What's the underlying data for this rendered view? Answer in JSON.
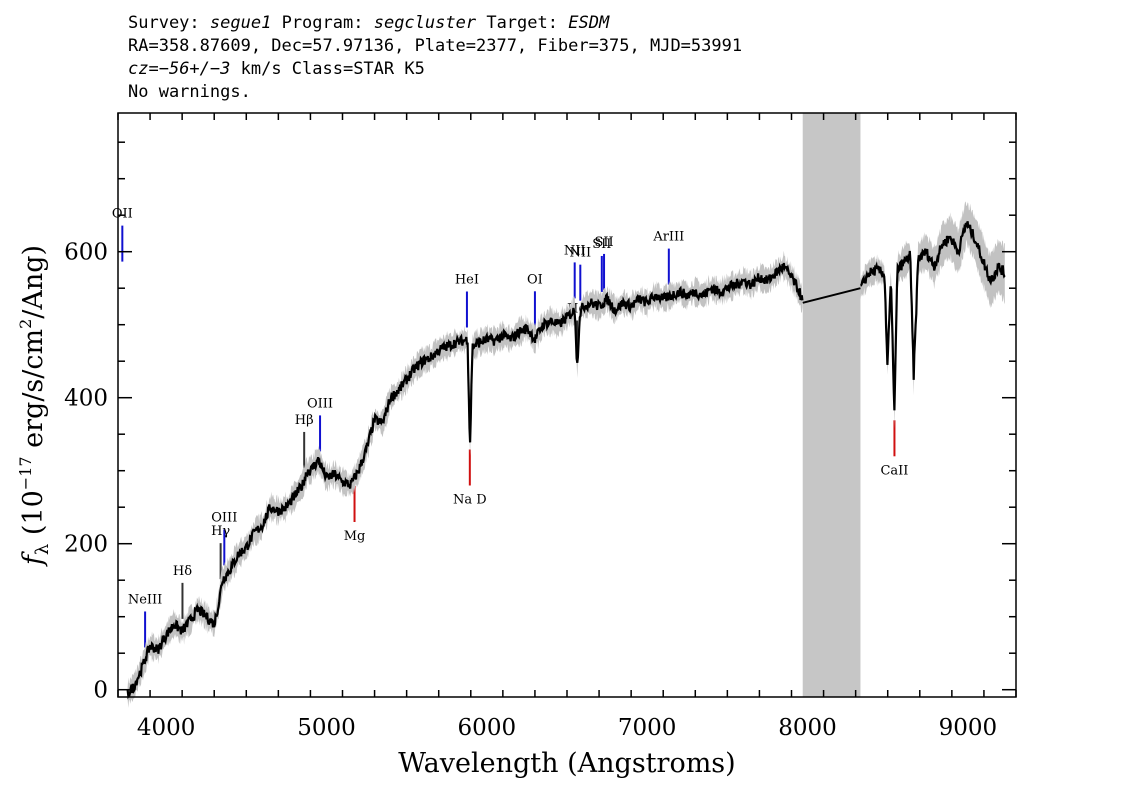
{
  "header": {
    "survey_label": "Survey:",
    "survey_value": "segue1",
    "program_label": "Program:",
    "program_value": "segcluster",
    "target_label": "Target:",
    "target_value": "ESDM",
    "line2": "RA=358.87609, Dec=57.97136, Plate=2377, Fiber=375, MJD=53991",
    "cz_label": "cz=",
    "cz_value": "−56+/−3",
    "cz_units": " km/s Class=STAR K5",
    "line4": "No warnings."
  },
  "chart_data": {
    "type": "line",
    "title": "Survey: segue1 Program: segcluster Target: ESDM",
    "xlabel": "Wavelength (Angstroms)",
    "ylabel_prefix": "f",
    "ylabel_subscript": "λ",
    "ylabel_main": " (10",
    "ylabel_exp": "−17",
    "ylabel_mid": " erg/s/cm",
    "ylabel_sq": "2",
    "ylabel_end": "/Ang)",
    "xlim": [
      3700,
      9300
    ],
    "ylim": [
      -10,
      790
    ],
    "x_ticks": [
      4000,
      5000,
      6000,
      7000,
      8000,
      9000
    ],
    "x_tick_labels": [
      "4000",
      "5000",
      "6000",
      "7000",
      "8000",
      "9000"
    ],
    "y_ticks": [
      0,
      200,
      400,
      600
    ],
    "y_tick_labels": [
      "0",
      "200",
      "400",
      "600"
    ],
    "masked_region": [
      7970,
      8330
    ],
    "series": [
      {
        "name": "flux",
        "color": "#000000",
        "x": [
          3760,
          3800,
          3850,
          3900,
          3950,
          4000,
          4050,
          4100,
          4150,
          4200,
          4250,
          4300,
          4330,
          4350,
          4400,
          4450,
          4500,
          4550,
          4600,
          4650,
          4700,
          4750,
          4800,
          4850,
          4880,
          4900,
          4950,
          5000,
          5050,
          5100,
          5150,
          5200,
          5250,
          5300,
          5350,
          5400,
          5450,
          5500,
          5550,
          5600,
          5650,
          5700,
          5750,
          5800,
          5850,
          5880,
          5895,
          5910,
          5950,
          6000,
          6050,
          6100,
          6150,
          6200,
          6250,
          6300,
          6350,
          6400,
          6450,
          6500,
          6550,
          6563,
          6580,
          6600,
          6650,
          6700,
          6750,
          6800,
          6850,
          6900,
          6950,
          7000,
          7050,
          7100,
          7150,
          7200,
          7250,
          7300,
          7350,
          7400,
          7450,
          7500,
          7550,
          7600,
          7650,
          7700,
          7750,
          7800,
          7850,
          7900,
          7950,
          7970,
          8330,
          8380,
          8430,
          8480,
          8498,
          8520,
          8542,
          8560,
          8600,
          8640,
          8662,
          8690,
          8740,
          8790,
          8840,
          8890,
          8940,
          8990,
          9040,
          9090,
          9140,
          9190,
          9230
        ],
        "y": [
          -5,
          5,
          30,
          60,
          55,
          75,
          90,
          80,
          95,
          110,
          100,
          90,
          120,
          150,
          165,
          185,
          195,
          215,
          225,
          250,
          245,
          250,
          265,
          280,
          300,
          300,
          315,
          290,
          295,
          285,
          280,
          300,
          330,
          370,
          365,
          400,
          410,
          425,
          440,
          450,
          455,
          465,
          470,
          475,
          478,
          480,
          330,
          470,
          475,
          480,
          478,
          485,
          480,
          490,
          495,
          480,
          500,
          505,
          500,
          510,
          520,
          440,
          515,
          525,
          530,
          525,
          535,
          520,
          530,
          525,
          535,
          530,
          540,
          535,
          540,
          545,
          540,
          545,
          540,
          550,
          545,
          550,
          555,
          560,
          555,
          565,
          560,
          570,
          580,
          565,
          545,
          530,
          550,
          570,
          575,
          570,
          445,
          560,
          380,
          575,
          585,
          595,
          430,
          590,
          600,
          580,
          610,
          620,
          600,
          640,
          620,
          590,
          560,
          580,
          570
        ]
      }
    ],
    "lines_blue": [
      {
        "label": "OII",
        "wave": 3727
      },
      {
        "label": "NeIII",
        "wave": 3869
      },
      {
        "label": "OIII",
        "wave": 4363
      },
      {
        "label": "OIII",
        "wave": 4960
      },
      {
        "label": "HeI",
        "wave": 5876
      },
      {
        "label": "OI",
        "wave": 6300
      },
      {
        "label": "NII",
        "wave": 6548
      },
      {
        "label": "NII",
        "wave": 6583
      },
      {
        "label": "SII",
        "wave": 6717
      },
      {
        "label": "SII",
        "wave": 6731
      },
      {
        "label": "ArIII",
        "wave": 7135
      }
    ],
    "lines_balmer": [
      {
        "label": "Hδ",
        "wave": 4102
      },
      {
        "label": "Hγ",
        "wave": 4340
      },
      {
        "label": "Hβ",
        "wave": 4861
      },
      {
        "label": "Hα",
        "wave": 6563
      }
    ],
    "lines_red": [
      {
        "label": "Mg",
        "wave": 5175
      },
      {
        "label": "Na D",
        "wave": 5894
      },
      {
        "label": "CaII",
        "wave": 8542
      }
    ]
  }
}
